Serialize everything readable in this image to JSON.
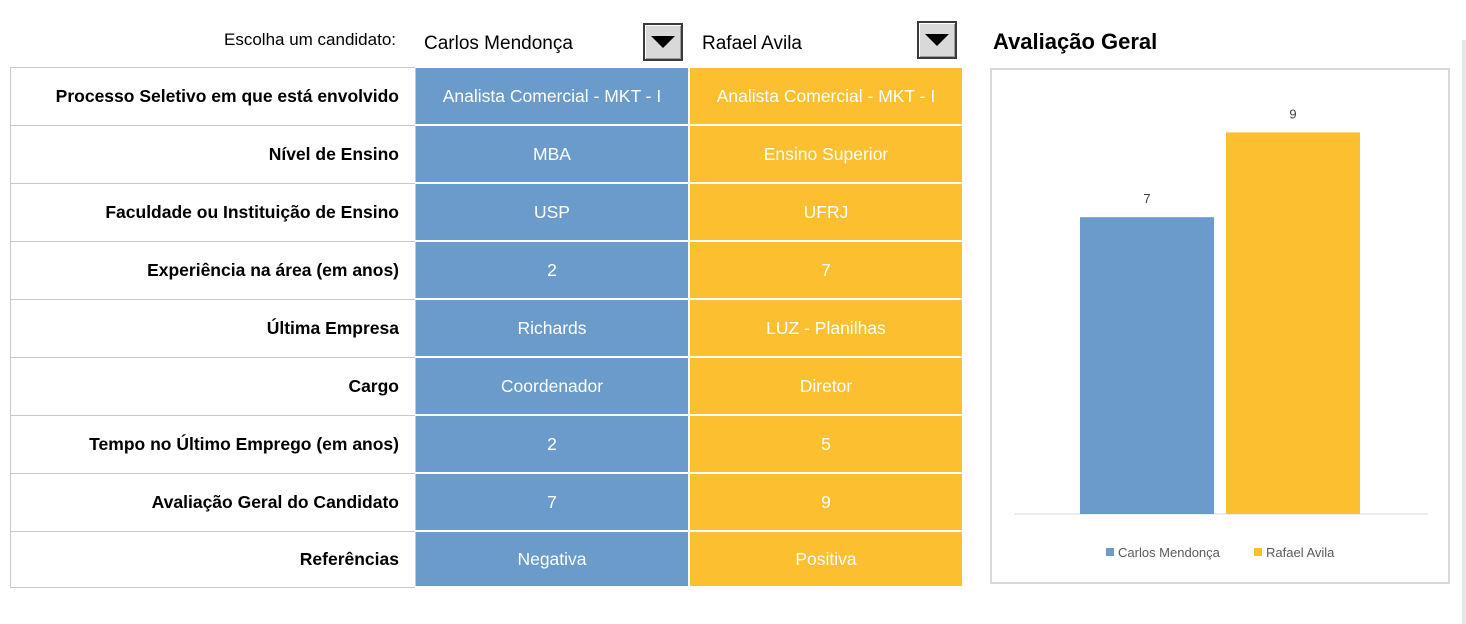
{
  "selector": {
    "label": "Escolha um candidato:",
    "candidate1": "Carlos Mendonça",
    "candidate2": "Rafael Avila"
  },
  "table": {
    "rows": [
      {
        "label": "Processo Seletivo em que está envolvido",
        "c1": "Analista Comercial - MKT - I",
        "c2": "Analista Comercial - MKT - I"
      },
      {
        "label": "Nível de Ensino",
        "c1": "MBA",
        "c2": "Ensino Superior"
      },
      {
        "label": "Faculdade ou Instituição de Ensino",
        "c1": "USP",
        "c2": "UFRJ"
      },
      {
        "label": "Experiência na área (em anos)",
        "c1": "2",
        "c2": "7"
      },
      {
        "label": "Última Empresa",
        "c1": "Richards",
        "c2": "LUZ - Planilhas"
      },
      {
        "label": "Cargo",
        "c1": "Coordenador",
        "c2": "Diretor"
      },
      {
        "label": "Tempo no Último Emprego (em anos)",
        "c1": "2",
        "c2": "5"
      },
      {
        "label": "Avaliação Geral do Candidato",
        "c1": "7",
        "c2": "9"
      },
      {
        "label": "Referências",
        "c1": "Negativa",
        "c2": "Positiva"
      }
    ]
  },
  "chart_data": {
    "type": "bar",
    "title": "Avaliação Geral",
    "categories": [
      ""
    ],
    "series": [
      {
        "name": "Carlos Mendonça",
        "values": [
          7
        ],
        "color": "#6a9bcb"
      },
      {
        "name": "Rafael Avila",
        "values": [
          9
        ],
        "color": "#fbbf2f"
      }
    ],
    "ylim": [
      0,
      10
    ],
    "grid": false,
    "legend": "bottom",
    "data_labels": true
  }
}
